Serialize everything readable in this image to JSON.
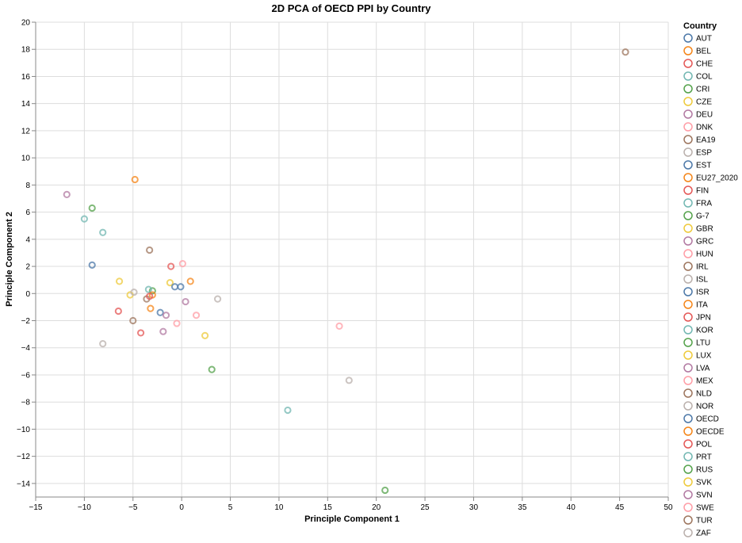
{
  "chart_data": {
    "type": "scatter",
    "title": "2D PCA of OECD PPI by Country",
    "xlabel": "Principle Component 1",
    "ylabel": "Principle Component 2",
    "xlim": [
      -15,
      50
    ],
    "ylim": [
      -15,
      20
    ],
    "x_ticks": [
      -15,
      -10,
      -5,
      0,
      5,
      10,
      15,
      20,
      25,
      30,
      35,
      40,
      45,
      50
    ],
    "y_ticks": [
      -14,
      -12,
      -10,
      -8,
      -6,
      -4,
      -2,
      0,
      2,
      4,
      6,
      8,
      10,
      12,
      14,
      16,
      18,
      20
    ],
    "grid": true,
    "legend_title": "Country",
    "legend_position": "right",
    "marker": "open-circle",
    "series": [
      {
        "name": "AUT",
        "color": "#4c78a8",
        "points": [
          [
            -2.2,
            -1.4
          ]
        ]
      },
      {
        "name": "BEL",
        "color": "#f58518",
        "points": [
          [
            -3.2,
            -1.1
          ]
        ]
      },
      {
        "name": "CHE",
        "color": "#e45756",
        "points": [
          [
            -6.5,
            -1.3
          ]
        ]
      },
      {
        "name": "COL",
        "color": "#72b7b2",
        "points": [
          [
            -10.0,
            5.5
          ]
        ]
      },
      {
        "name": "CRI",
        "color": "#54a24b",
        "points": [
          [
            -3.0,
            0.2
          ]
        ]
      },
      {
        "name": "CZE",
        "color": "#eeca3b",
        "points": [
          [
            -1.2,
            0.8
          ]
        ]
      },
      {
        "name": "DEU",
        "color": "#b279a2",
        "points": [
          [
            0.4,
            -0.6
          ]
        ]
      },
      {
        "name": "DNK",
        "color": "#ff9da6",
        "points": [
          [
            -0.5,
            -2.2
          ]
        ]
      },
      {
        "name": "EA19",
        "color": "#9d755d",
        "points": [
          [
            -3.6,
            -0.4
          ]
        ]
      },
      {
        "name": "ESP",
        "color": "#bab0ac",
        "points": [
          [
            -8.1,
            -3.7
          ]
        ]
      },
      {
        "name": "EST",
        "color": "#4c78a8",
        "points": [
          [
            -9.2,
            2.1
          ]
        ]
      },
      {
        "name": "EU27_2020",
        "color": "#f58518",
        "points": [
          [
            -4.8,
            8.4
          ]
        ]
      },
      {
        "name": "FIN",
        "color": "#e45756",
        "points": [
          [
            -1.1,
            2.0
          ]
        ]
      },
      {
        "name": "FRA",
        "color": "#72b7b2",
        "points": [
          [
            -8.1,
            4.5
          ]
        ]
      },
      {
        "name": "G-7",
        "color": "#54a24b",
        "points": [
          [
            -9.2,
            6.3
          ]
        ]
      },
      {
        "name": "GBR",
        "color": "#eeca3b",
        "points": [
          [
            -6.4,
            0.9
          ]
        ]
      },
      {
        "name": "GRC",
        "color": "#b279a2",
        "points": [
          [
            -1.9,
            -2.8
          ]
        ]
      },
      {
        "name": "HUN",
        "color": "#ff9da6",
        "points": [
          [
            0.1,
            2.2
          ]
        ]
      },
      {
        "name": "IRL",
        "color": "#9d755d",
        "points": [
          [
            -3.3,
            3.2
          ]
        ]
      },
      {
        "name": "ISL",
        "color": "#bab0ac",
        "points": [
          [
            3.7,
            -0.4
          ]
        ]
      },
      {
        "name": "ISR",
        "color": "#4c78a8",
        "points": [
          [
            -0.7,
            0.5
          ]
        ]
      },
      {
        "name": "ITA",
        "color": "#f58518",
        "points": [
          [
            0.9,
            0.9
          ]
        ]
      },
      {
        "name": "JPN",
        "color": "#e45756",
        "points": [
          [
            -4.2,
            -2.9
          ]
        ]
      },
      {
        "name": "KOR",
        "color": "#72b7b2",
        "points": [
          [
            -3.4,
            0.3
          ]
        ]
      },
      {
        "name": "LTU",
        "color": "#54a24b",
        "points": [
          [
            3.1,
            -5.6
          ]
        ]
      },
      {
        "name": "LUX",
        "color": "#eeca3b",
        "points": [
          [
            2.4,
            -3.1
          ]
        ]
      },
      {
        "name": "LVA",
        "color": "#b279a2",
        "points": [
          [
            -11.8,
            7.3
          ]
        ]
      },
      {
        "name": "MEX",
        "color": "#ff9da6",
        "points": [
          [
            16.2,
            -2.4
          ]
        ]
      },
      {
        "name": "NLD",
        "color": "#9d755d",
        "points": [
          [
            -5.0,
            -2.0
          ]
        ]
      },
      {
        "name": "NOR",
        "color": "#bab0ac",
        "points": [
          [
            17.2,
            -6.4
          ]
        ]
      },
      {
        "name": "OECD",
        "color": "#4c78a8",
        "points": [
          [
            -0.1,
            0.5
          ]
        ]
      },
      {
        "name": "OECDE",
        "color": "#f58518",
        "points": [
          [
            -3.0,
            -0.1
          ]
        ]
      },
      {
        "name": "POL",
        "color": "#e45756",
        "points": [
          [
            -3.3,
            -0.2
          ]
        ]
      },
      {
        "name": "PRT",
        "color": "#72b7b2",
        "points": [
          [
            10.9,
            -8.6
          ]
        ]
      },
      {
        "name": "RUS",
        "color": "#54a24b",
        "points": [
          [
            20.9,
            -14.5
          ]
        ]
      },
      {
        "name": "SVK",
        "color": "#eeca3b",
        "points": [
          [
            -5.3,
            -0.1
          ]
        ]
      },
      {
        "name": "SVN",
        "color": "#b279a2",
        "points": [
          [
            -1.6,
            -1.6
          ]
        ]
      },
      {
        "name": "SWE",
        "color": "#ff9da6",
        "points": [
          [
            1.5,
            -1.6
          ]
        ]
      },
      {
        "name": "TUR",
        "color": "#9d755d",
        "points": [
          [
            45.6,
            17.8
          ]
        ]
      },
      {
        "name": "ZAF",
        "color": "#bab0ac",
        "points": [
          [
            -4.9,
            0.1
          ]
        ]
      }
    ]
  }
}
